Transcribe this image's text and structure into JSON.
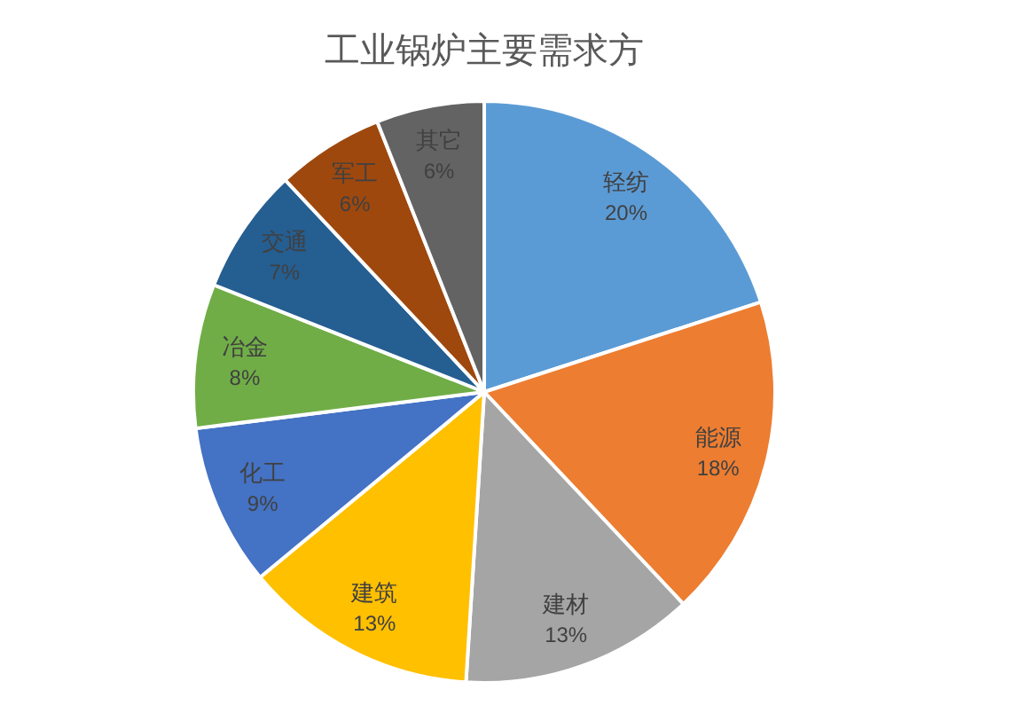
{
  "chart_data": {
    "type": "pie",
    "title": "工业锅炉主要需求方",
    "categories": [
      "轻纺",
      "能源",
      "建材",
      "建筑",
      "化工",
      "冶金",
      "交通",
      "军工",
      "其它"
    ],
    "values": [
      20,
      18,
      13,
      13,
      9,
      8,
      7,
      6,
      6
    ],
    "colors": [
      "#5b9bd5",
      "#ed7d31",
      "#a5a5a5",
      "#ffc000",
      "#4472c4",
      "#70ad47",
      "#255e91",
      "#9e480e",
      "#636363"
    ],
    "value_labels": [
      "20%",
      "18%",
      "13%",
      "13%",
      "9%",
      "8%",
      "7%",
      "6%",
      "6%"
    ]
  }
}
